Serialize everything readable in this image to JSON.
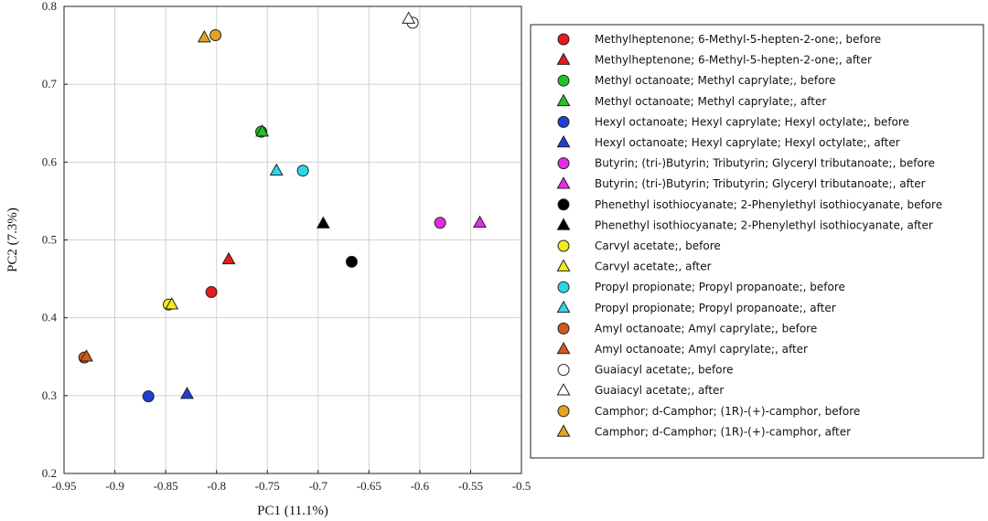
{
  "chart_data": {
    "type": "scatter",
    "title": "",
    "xlabel": "PC1 (11.1%)",
    "ylabel": "PC2 (7.3%)",
    "xlim": [
      -0.95,
      -0.5
    ],
    "ylim": [
      0.2,
      0.8
    ],
    "xticks": [
      -0.95,
      -0.9,
      -0.85,
      -0.8,
      -0.75,
      -0.7,
      -0.65,
      -0.6,
      -0.55,
      -0.5
    ],
    "xtick_labels": [
      "-0.95",
      "-0.9",
      "-0.85",
      "-0.8",
      "-0.75",
      "-0.7",
      "-0.65",
      "-0.6",
      "-0.55",
      "-0.5"
    ],
    "yticks": [
      0.2,
      0.3,
      0.4,
      0.5,
      0.6,
      0.7,
      0.8
    ],
    "ytick_labels": [
      "0.2",
      "0.3",
      "0.4",
      "0.5",
      "0.6",
      "0.7",
      "0.8"
    ],
    "grid": true,
    "legend_position": "right",
    "series": [
      {
        "name": "Methylheptenone;  6-Methyl-5-hepten-2-one;, before",
        "marker": "circle",
        "color": "#e41a1c",
        "x": -0.805,
        "y": 0.433
      },
      {
        "name": "Methylheptenone;  6-Methyl-5-hepten-2-one;, after",
        "marker": "triangle",
        "color": "#e41a1c",
        "x": -0.788,
        "y": 0.475
      },
      {
        "name": "Methyl octanoate; Methyl caprylate;, before",
        "marker": "circle",
        "color": "#22c422",
        "x": -0.756,
        "y": 0.639
      },
      {
        "name": "Methyl octanoate; Methyl caprylate;, after",
        "marker": "triangle",
        "color": "#22c422",
        "x": -0.755,
        "y": 0.639
      },
      {
        "name": "Hexyl octanoate; Hexyl caprylate; Hexyl octylate;, before",
        "marker": "circle",
        "color": "#1f3fd6",
        "x": -0.867,
        "y": 0.299
      },
      {
        "name": "Hexyl octanoate; Hexyl caprylate; Hexyl octylate;, after",
        "marker": "triangle",
        "color": "#1f3fd6",
        "x": -0.829,
        "y": 0.302
      },
      {
        "name": "Butyrin;  (tri-)Butyrin; Tributyrin; Glyceryl tributanoate;, before",
        "marker": "circle",
        "color": "#e52ce5",
        "x": -0.58,
        "y": 0.522
      },
      {
        "name": "Butyrin;  (tri-)Butyrin; Tributyrin; Glyceryl tributanoate;, after",
        "marker": "triangle",
        "color": "#e52ce5",
        "x": -0.541,
        "y": 0.522
      },
      {
        "name": "Phenethyl isothiocyanate; 2-Phenylethyl isothiocyanate, before",
        "marker": "circle",
        "color": "#000000",
        "x": -0.667,
        "y": 0.472
      },
      {
        "name": "Phenethyl isothiocyanate; 2-Phenylethyl isothiocyanate, after",
        "marker": "triangle",
        "color": "#000000",
        "x": -0.695,
        "y": 0.521
      },
      {
        "name": "Carvyl acetate;, before",
        "marker": "circle",
        "color": "#f2ec18",
        "x": -0.847,
        "y": 0.417
      },
      {
        "name": "Carvyl acetate;, after",
        "marker": "triangle",
        "color": "#f2ec18",
        "x": -0.844,
        "y": 0.417
      },
      {
        "name": "Propyl propionate;  Propyl propanoate;, before",
        "marker": "circle",
        "color": "#2ad8e6",
        "x": -0.715,
        "y": 0.589
      },
      {
        "name": "Propyl propionate;  Propyl propanoate;, after",
        "marker": "triangle",
        "color": "#2ad8e6",
        "x": -0.741,
        "y": 0.589
      },
      {
        "name": "Amyl octanoate; Amyl caprylate;, before",
        "marker": "circle",
        "color": "#d2581e",
        "x": -0.93,
        "y": 0.349
      },
      {
        "name": "Amyl octanoate; Amyl caprylate;, after",
        "marker": "triangle",
        "color": "#d2581e",
        "x": -0.928,
        "y": 0.35
      },
      {
        "name": "Guaiacyl acetate;, before",
        "marker": "circle",
        "color": "#ffffff",
        "x": -0.607,
        "y": 0.779
      },
      {
        "name": "Guaiacyl acetate;, after",
        "marker": "triangle",
        "color": "#ffffff",
        "x": -0.611,
        "y": 0.784
      },
      {
        "name": "Camphor; d-Camphor; (1R)-(+)-camphor, before",
        "marker": "circle",
        "color": "#e8a020",
        "x": -0.801,
        "y": 0.763
      },
      {
        "name": "Camphor; d-Camphor; (1R)-(+)-camphor, after",
        "marker": "triangle",
        "color": "#e8a020",
        "x": -0.812,
        "y": 0.76
      }
    ]
  }
}
